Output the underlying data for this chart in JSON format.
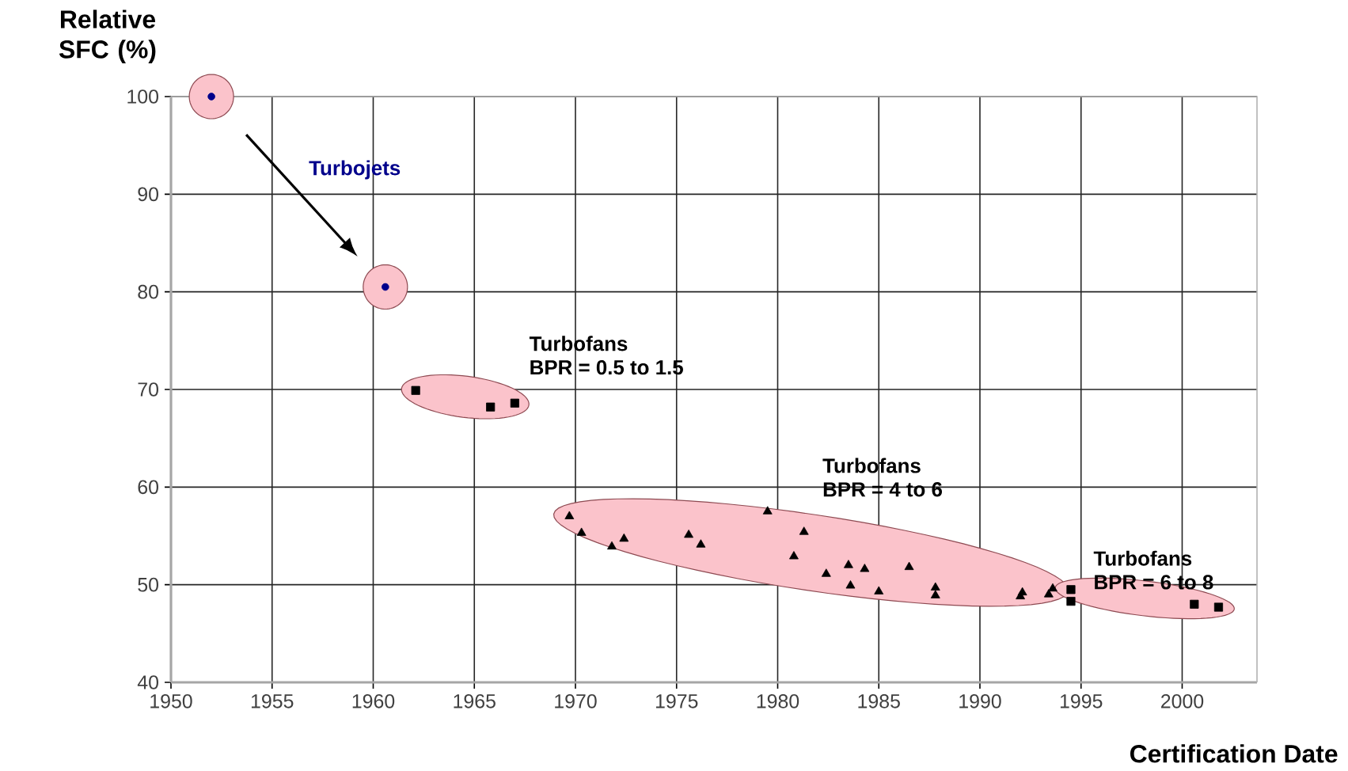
{
  "chart_data": {
    "type": "scatter",
    "xlabel": "Certification Date",
    "ylabel": "Relative SFC (%)",
    "xlim": [
      1950,
      2003.7
    ],
    "ylim": [
      40,
      100
    ],
    "xticks": [
      1950,
      1955,
      1960,
      1965,
      1970,
      1975,
      1980,
      1985,
      1990,
      1995,
      2000
    ],
    "yticks": [
      40,
      50,
      60,
      70,
      80,
      90,
      100
    ],
    "grid": true,
    "annotations": [
      "BPR = 0.5 to 1.5",
      "BPR = 4 to 6",
      "BPR = 6 to 8"
    ],
    "series": [
      {
        "name": "Turbojets",
        "color": "#00008b",
        "marker": "circle",
        "x": [
          1952.0,
          1960.6
        ],
        "values": [
          100,
          80.5
        ]
      },
      {
        "name": "Turbofans",
        "color": "#000000",
        "marker": "square",
        "x": [
          1962.1,
          1965.8,
          1967.0
        ],
        "values": [
          69.9,
          68.2,
          68.6
        ]
      },
      {
        "name": "Turbofans",
        "color": "#000000",
        "marker": "triangle",
        "x": [
          1969.7,
          1970.3,
          1971.8,
          1972.4,
          1975.6,
          1976.2,
          1979.5,
          1980.8,
          1981.3,
          1982.4,
          1983.5,
          1983.6,
          1984.3,
          1985.0,
          1986.5,
          1987.8,
          1987.8,
          1992.0,
          1992.1,
          1993.4,
          1993.6
        ],
        "values": [
          57.0,
          55.3,
          53.9,
          54.7,
          55.1,
          54.1,
          57.5,
          52.9,
          55.4,
          51.1,
          52.0,
          49.9,
          51.6,
          49.3,
          51.8,
          49.7,
          48.9,
          48.8,
          49.2,
          49.0,
          49.6
        ]
      },
      {
        "name": "Turbofans",
        "color": "#000000",
        "marker": "square",
        "x": [
          1994.5,
          1994.5,
          2000.6,
          2001.8
        ],
        "values": [
          49.5,
          48.3,
          48.0,
          47.7
        ]
      }
    ]
  }
}
